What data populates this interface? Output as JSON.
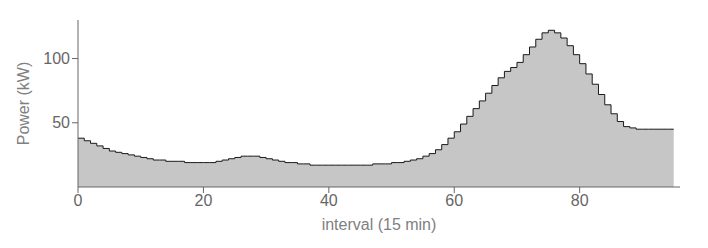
{
  "chart_data": {
    "type": "step",
    "xlabel": "interval (15 min)",
    "ylabel": "Power (kW)",
    "x": [
      0,
      1,
      2,
      3,
      4,
      5,
      6,
      7,
      8,
      9,
      10,
      11,
      12,
      13,
      14,
      15,
      16,
      17,
      18,
      19,
      20,
      21,
      22,
      23,
      24,
      25,
      26,
      27,
      28,
      29,
      30,
      31,
      32,
      33,
      34,
      35,
      36,
      37,
      38,
      39,
      40,
      41,
      42,
      43,
      44,
      45,
      46,
      47,
      48,
      49,
      50,
      51,
      52,
      53,
      54,
      55,
      56,
      57,
      58,
      59,
      60,
      61,
      62,
      63,
      64,
      65,
      66,
      67,
      68,
      69,
      70,
      71,
      72,
      73,
      74,
      75,
      76,
      77,
      78,
      79,
      80,
      81,
      82,
      83,
      84,
      85,
      86,
      87,
      88,
      89,
      90,
      91,
      92,
      93,
      94,
      95
    ],
    "values": [
      38,
      36,
      34,
      32,
      30,
      28,
      27,
      26,
      25,
      24,
      23,
      22,
      21,
      21,
      20,
      20,
      20,
      19,
      19,
      19,
      19,
      19,
      20,
      21,
      22,
      23,
      24,
      24,
      24,
      23,
      22,
      21,
      20,
      19,
      19,
      18,
      18,
      17,
      17,
      17,
      17,
      17,
      17,
      17,
      17,
      17,
      17,
      18,
      18,
      18,
      19,
      19,
      20,
      21,
      22,
      24,
      26,
      29,
      33,
      38,
      43,
      49,
      55,
      61,
      67,
      73,
      79,
      85,
      90,
      93,
      97,
      103,
      109,
      115,
      120,
      122,
      120,
      116,
      110,
      103,
      96,
      88,
      80,
      72,
      64,
      57,
      51,
      47,
      46,
      45,
      45,
      45,
      45,
      45,
      45,
      45
    ],
    "color": "#1a1a1a",
    "xlim": [
      0,
      96
    ],
    "ylim": [
      0,
      130
    ],
    "xticks": [
      0,
      20,
      40,
      60,
      80
    ],
    "yticks": [
      50,
      100
    ],
    "grid": false
  }
}
